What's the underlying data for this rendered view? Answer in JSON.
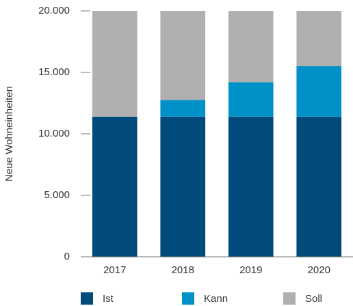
{
  "chart_data": {
    "type": "stacked_bar",
    "ylabel": "Neue Wohneinheiten",
    "categories": [
      "2017",
      "2018",
      "2019",
      "2020"
    ],
    "series": [
      {
        "name": "Ist",
        "color": "#004a7c",
        "values": [
          11400,
          11400,
          11400,
          11400
        ]
      },
      {
        "name": "Kann",
        "color": "#0091c8",
        "values": [
          0,
          1350,
          2800,
          4100
        ]
      },
      {
        "name": "Soll",
        "color": "#b0b0b0",
        "values": [
          8600,
          7250,
          5800,
          4500
        ]
      }
    ],
    "ylim": [
      0,
      20000
    ],
    "yticks": [
      0,
      {
        "value": 5000,
        "label": "5.000"
      },
      {
        "value": 10000,
        "label": "10.000"
      },
      {
        "value": 15000,
        "label": "15.000"
      },
      {
        "value": 20000,
        "label": "20.000"
      }
    ],
    "legend": "bottom"
  }
}
